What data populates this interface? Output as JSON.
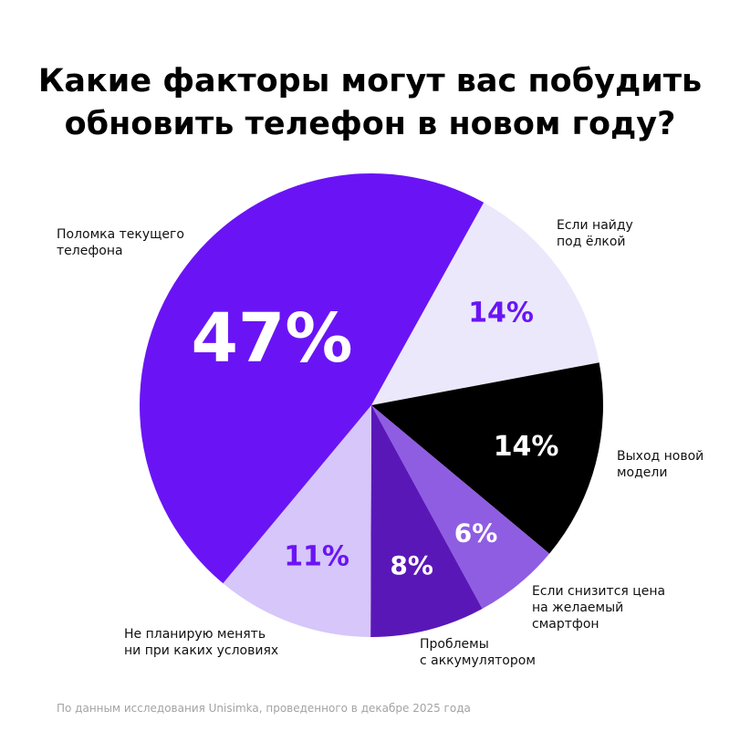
{
  "title": {
    "line1": "Какие факторы могут вас побудить",
    "line2": "обновить телефон в новом году?"
  },
  "source": "По данным исследования Unisimka, проведенного в декабре 2025 года",
  "colors": {
    "purple_main": "#6a14f5",
    "lavender_light": "#ebe8fb",
    "black": "#000000",
    "purple_medium": "#8f5de2",
    "purple_dark": "#5a17b8",
    "lavender": "#d6c6fa"
  },
  "chart_data": {
    "type": "pie",
    "title": "Какие факторы могут вас побудить обновить телефон в новом году?",
    "start_angle_deg": 29,
    "direction": "clockwise",
    "slices": [
      {
        "label_lines": [
          "Если найду",
          "под ёлкой"
        ],
        "value": 14,
        "value_label": "14%",
        "color": "#ebe8fb",
        "value_color": "#6a14f5"
      },
      {
        "label_lines": [
          "Выход новой",
          "модели"
        ],
        "value": 14,
        "value_label": "14%",
        "color": "#000000",
        "value_color": "#ffffff"
      },
      {
        "label_lines": [
          "Если снизится цена",
          "на желаемый",
          "смартфон"
        ],
        "value": 6,
        "value_label": "6%",
        "color": "#8f5de2",
        "value_color": "#ffffff"
      },
      {
        "label_lines": [
          "Проблемы",
          "с аккумулятором"
        ],
        "value": 8,
        "value_label": "8%",
        "color": "#5a17b8",
        "value_color": "#ffffff"
      },
      {
        "label_lines": [
          "Не планирую менять",
          "ни при каких условиях"
        ],
        "value": 11,
        "value_label": "11%",
        "color": "#d6c6fa",
        "value_color": "#6a14f5"
      },
      {
        "label_lines": [
          "Поломка текущего",
          "телефона"
        ],
        "value": 47,
        "value_label": "47%",
        "color": "#6a14f5",
        "value_color": "#ffffff"
      }
    ]
  }
}
